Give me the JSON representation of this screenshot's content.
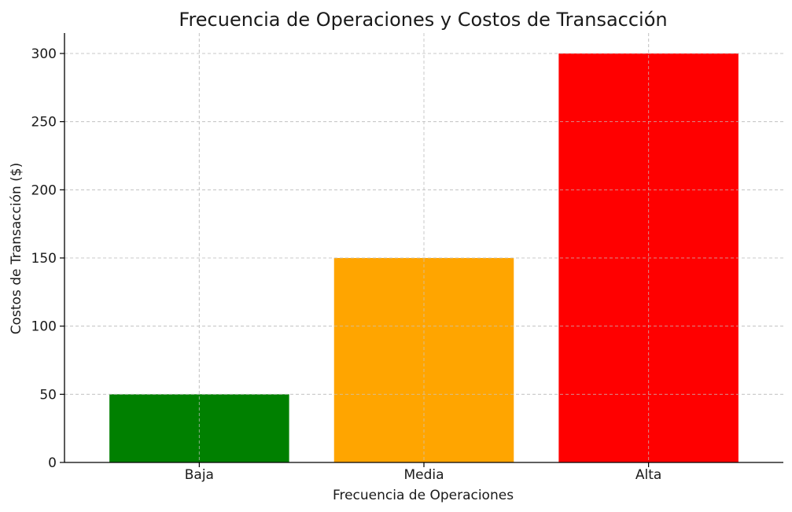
{
  "chart_data": {
    "type": "bar",
    "title": "Frecuencia de Operaciones y Costos de Transacción",
    "xlabel": "Frecuencia de Operaciones",
    "ylabel": "Costos de Transacción ($)",
    "categories": [
      "Baja",
      "Media",
      "Alta"
    ],
    "values": [
      50,
      150,
      300
    ],
    "colors": [
      "#008000",
      "#FFA500",
      "#FF0000"
    ],
    "ylim": [
      0,
      315
    ],
    "yticks": [
      0,
      50,
      100,
      150,
      200,
      250,
      300
    ],
    "grid": true
  }
}
